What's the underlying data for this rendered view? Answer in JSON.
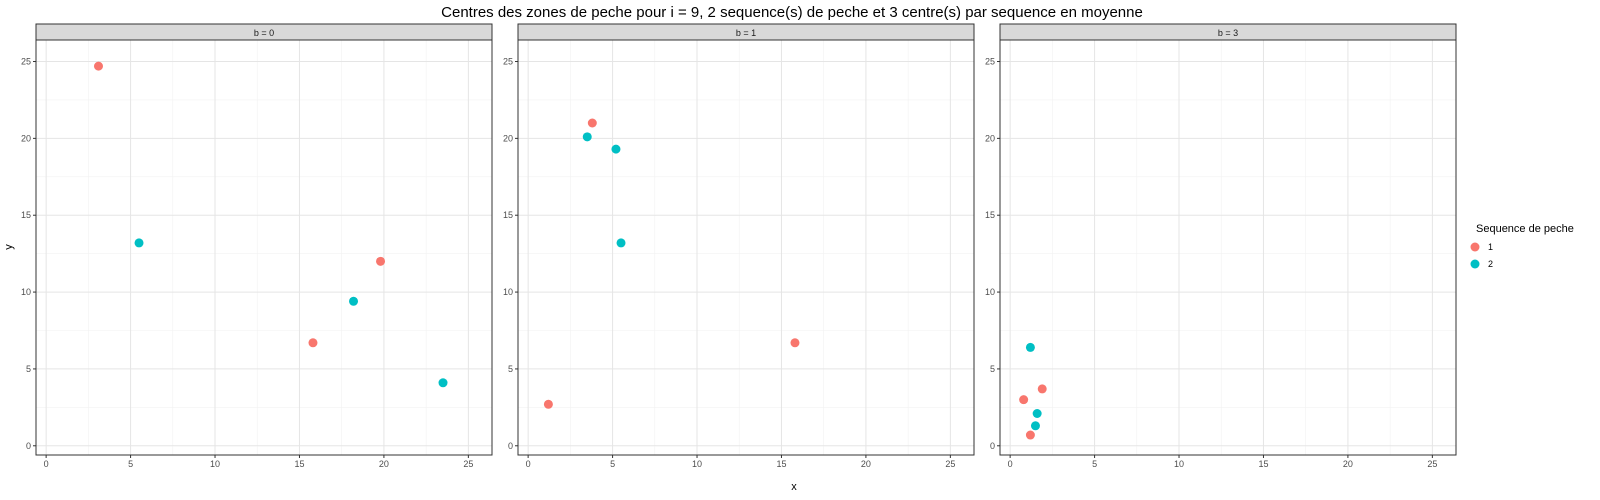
{
  "chart_data": {
    "type": "scatter",
    "title": "Centres des zones de peche pour i = 9, 2 sequence(s) de peche et 3 centre(s) par sequence en moyenne",
    "xlabel": "x",
    "ylabel": "y",
    "xlim": [
      -0.6,
      26.4
    ],
    "ylim": [
      -0.6,
      26.4
    ],
    "xticks": [
      0,
      5,
      10,
      15,
      20,
      25
    ],
    "yticks": [
      0,
      5,
      10,
      15,
      20,
      25
    ],
    "grid": true,
    "legend": {
      "title": "Sequence de peche",
      "position": "right",
      "items": [
        {
          "label": "1",
          "color": "#F8766D"
        },
        {
          "label": "2",
          "color": "#00BFC4"
        }
      ]
    },
    "panels": [
      {
        "strip": "b = 0",
        "points": [
          {
            "x": 3.1,
            "y": 24.7,
            "series": "1"
          },
          {
            "x": 15.8,
            "y": 6.7,
            "series": "1"
          },
          {
            "x": 19.8,
            "y": 12.0,
            "series": "1"
          },
          {
            "x": 5.5,
            "y": 13.2,
            "series": "2"
          },
          {
            "x": 18.2,
            "y": 9.4,
            "series": "2"
          },
          {
            "x": 23.5,
            "y": 4.1,
            "series": "2"
          }
        ]
      },
      {
        "strip": "b = 1",
        "points": [
          {
            "x": 3.8,
            "y": 21.0,
            "series": "1"
          },
          {
            "x": 1.2,
            "y": 2.7,
            "series": "1"
          },
          {
            "x": 15.8,
            "y": 6.7,
            "series": "1"
          },
          {
            "x": 3.5,
            "y": 20.1,
            "series": "2"
          },
          {
            "x": 5.2,
            "y": 19.3,
            "series": "2"
          },
          {
            "x": 5.5,
            "y": 13.2,
            "series": "2"
          }
        ]
      },
      {
        "strip": "b = 3",
        "points": [
          {
            "x": 1.9,
            "y": 3.7,
            "series": "1"
          },
          {
            "x": 0.8,
            "y": 3.0,
            "series": "1"
          },
          {
            "x": 1.2,
            "y": 0.7,
            "series": "1"
          },
          {
            "x": 1.2,
            "y": 6.4,
            "series": "2"
          },
          {
            "x": 1.6,
            "y": 2.1,
            "series": "2"
          },
          {
            "x": 1.5,
            "y": 1.3,
            "series": "2"
          }
        ]
      }
    ]
  }
}
